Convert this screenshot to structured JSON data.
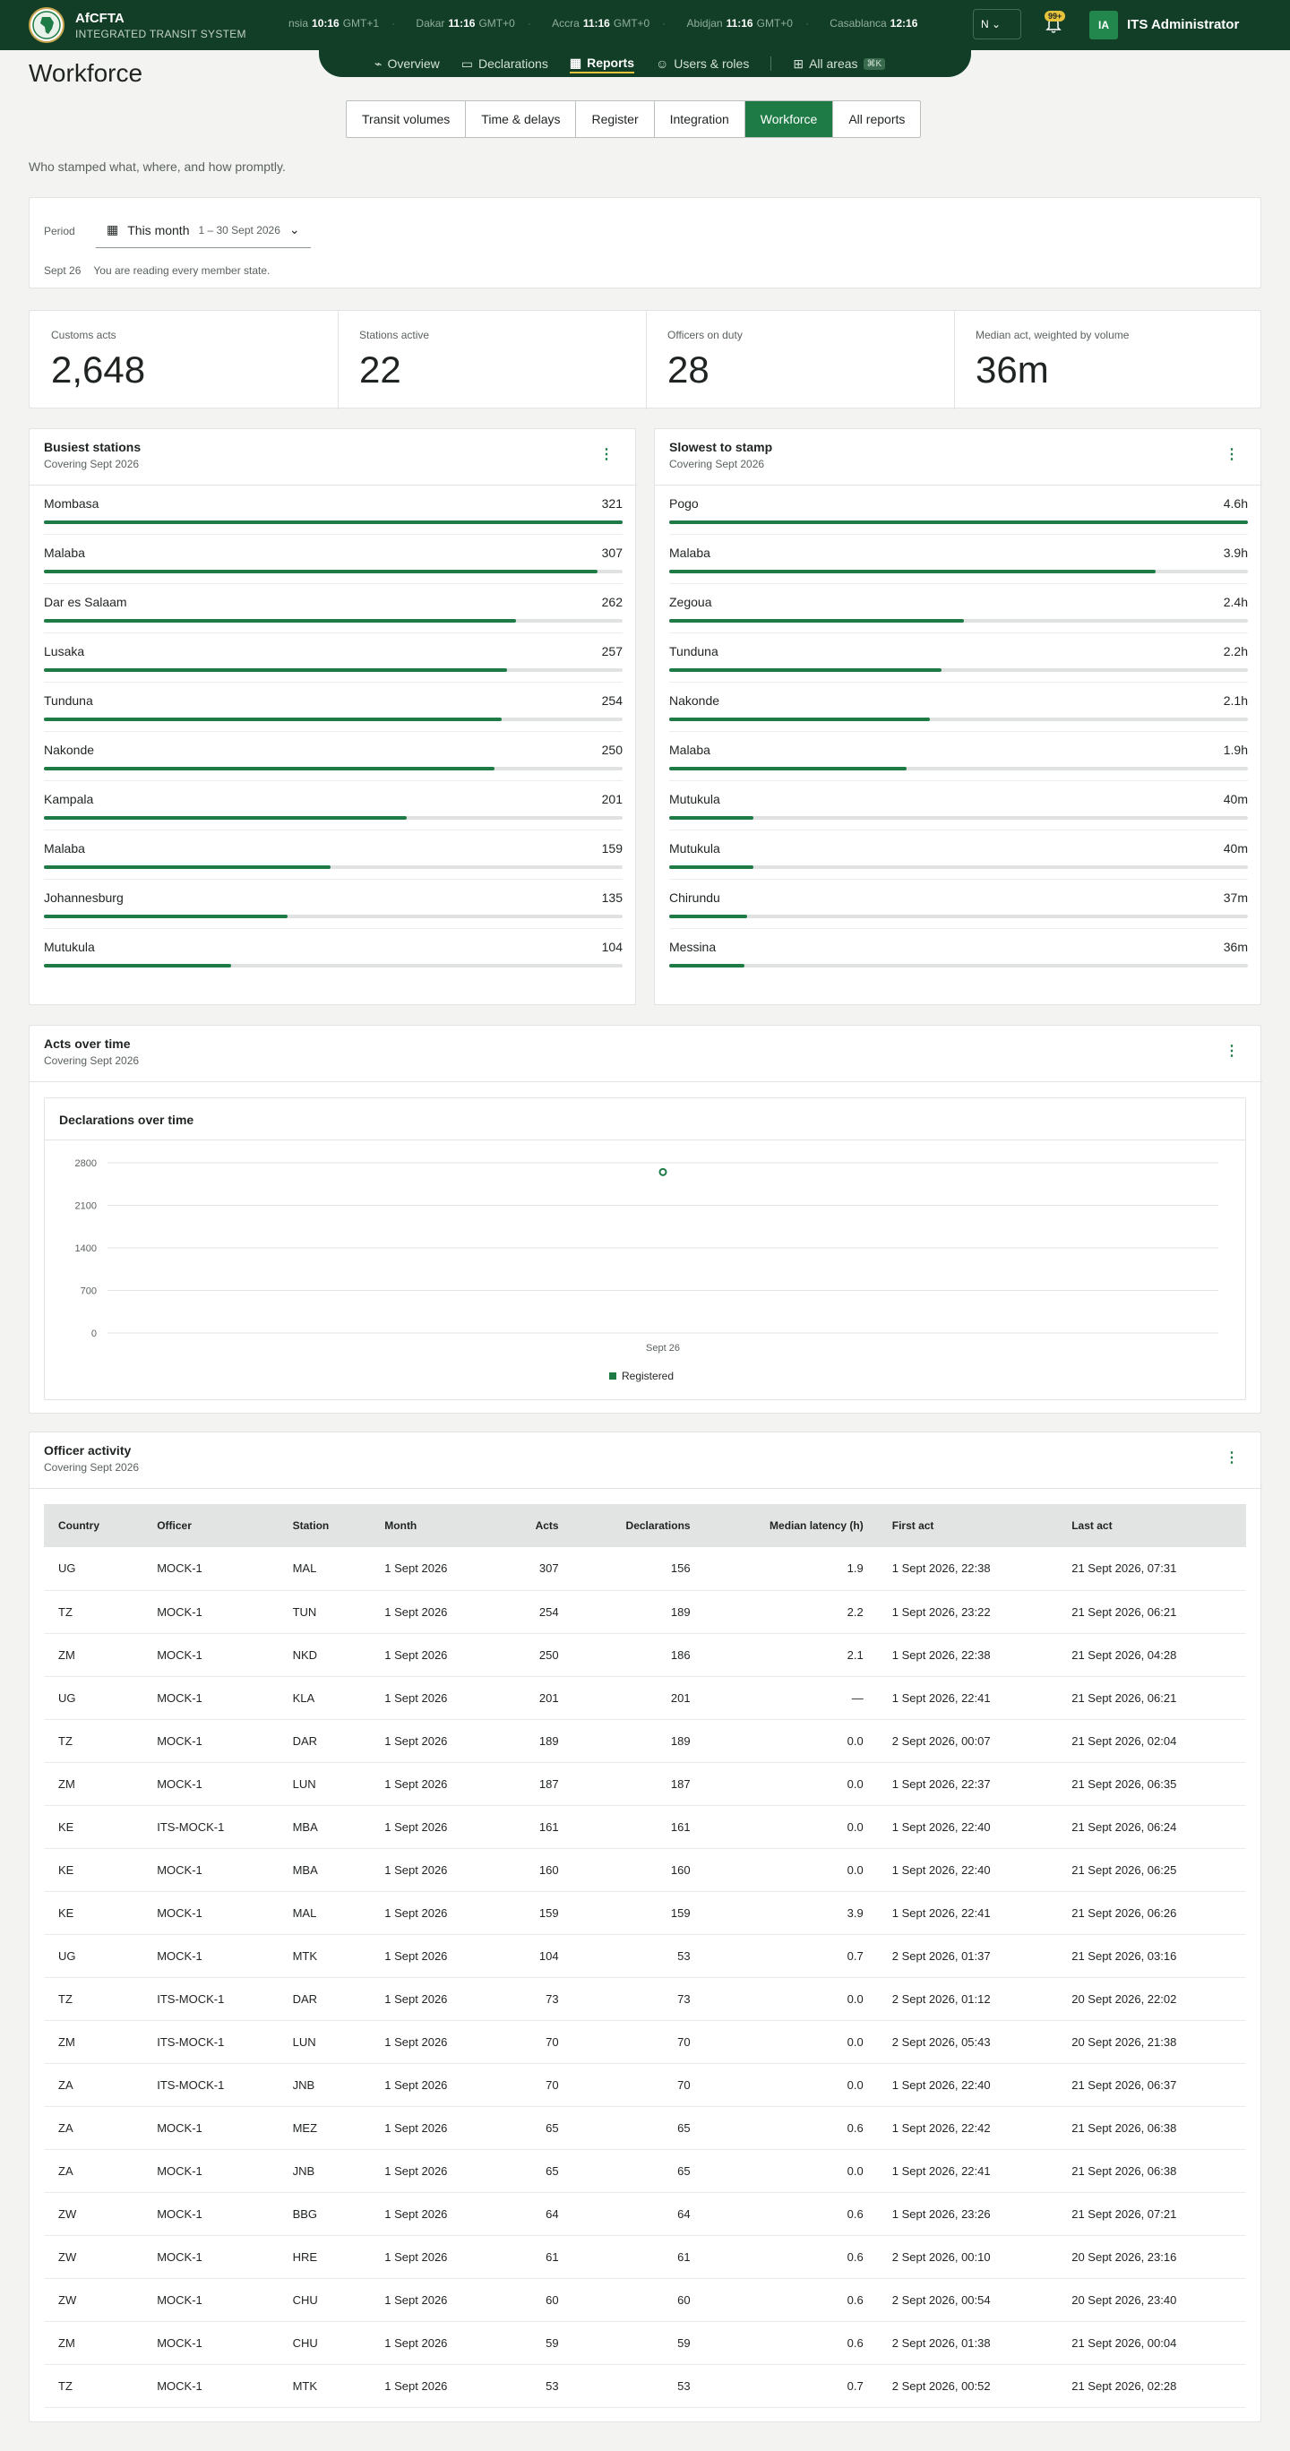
{
  "header": {
    "brand": "AfCFTA",
    "system": "INTEGRATED TRANSIT SYSTEM",
    "clocks": [
      {
        "city": "nsia",
        "time": "10:16",
        "zone": "GMT+1"
      },
      {
        "city": "Dakar",
        "time": "11:16",
        "zone": "GMT+0"
      },
      {
        "city": "Accra",
        "time": "11:16",
        "zone": "GMT+0"
      },
      {
        "city": "Abidjan",
        "time": "11:16",
        "zone": "GMT+0"
      },
      {
        "city": "Casablanca",
        "time": "12:16",
        "zone": ""
      }
    ],
    "lang_value": "N",
    "notif_badge": "99+",
    "user_initials": "IA",
    "user_name": "ITS Administrator"
  },
  "nav": {
    "overview": "Overview",
    "declarations": "Declarations",
    "reports": "Reports",
    "users": "Users & roles",
    "all_areas": "All areas",
    "shortcut": "⌘K"
  },
  "page": {
    "title": "Workforce",
    "subtitle": "Who stamped what, where, and how promptly."
  },
  "tabs": [
    "Transit volumes",
    "Time & delays",
    "Register",
    "Integration",
    "Workforce",
    "All reports"
  ],
  "period": {
    "label": "Period",
    "value": "This month",
    "range": "1 – 30 Sept 2026",
    "note_date": "Sept 26",
    "note_text": "You are reading every member state."
  },
  "kpis": [
    {
      "label": "Customs acts",
      "value": "2,648"
    },
    {
      "label": "Stations active",
      "value": "22"
    },
    {
      "label": "Officers on duty",
      "value": "28"
    },
    {
      "label": "Median act, weighted by volume",
      "value": "36m"
    }
  ],
  "busiest": {
    "title": "Busiest stations",
    "sub": "Covering Sept 2026",
    "max": 321,
    "rows": [
      {
        "name": "Mombasa",
        "value": 321
      },
      {
        "name": "Malaba",
        "value": 307
      },
      {
        "name": "Dar es Salaam",
        "value": 262
      },
      {
        "name": "Lusaka",
        "value": 257
      },
      {
        "name": "Tunduna",
        "value": 254
      },
      {
        "name": "Nakonde",
        "value": 250
      },
      {
        "name": "Kampala",
        "value": 201
      },
      {
        "name": "Malaba",
        "value": 159
      },
      {
        "name": "Johannesburg",
        "value": 135
      },
      {
        "name": "Mutukula",
        "value": 104
      }
    ]
  },
  "slowest": {
    "title": "Slowest to stamp",
    "sub": "Covering Sept 2026",
    "rows": [
      {
        "name": "Pogo",
        "label": "4.6h",
        "fraction": 1.0
      },
      {
        "name": "Malaba",
        "label": "3.9h",
        "fraction": 0.84
      },
      {
        "name": "Zegoua",
        "label": "2.4h",
        "fraction": 0.51
      },
      {
        "name": "Tunduna",
        "label": "2.2h",
        "fraction": 0.47
      },
      {
        "name": "Nakonde",
        "label": "2.1h",
        "fraction": 0.45
      },
      {
        "name": "Malaba",
        "label": "1.9h",
        "fraction": 0.41
      },
      {
        "name": "Mutukula",
        "label": "40m",
        "fraction": 0.145
      },
      {
        "name": "Mutukula",
        "label": "40m",
        "fraction": 0.145
      },
      {
        "name": "Chirundu",
        "label": "37m",
        "fraction": 0.134
      },
      {
        "name": "Messina",
        "label": "36m",
        "fraction": 0.13
      }
    ]
  },
  "acts": {
    "title": "Acts over time",
    "sub": "Covering Sept 2026"
  },
  "chart_data": {
    "type": "scatter",
    "title": "Declarations over time",
    "x": [
      "Sept 26"
    ],
    "series": [
      {
        "name": "Registered",
        "values": [
          2648
        ]
      }
    ],
    "yticks": [
      0,
      700,
      1400,
      2100,
      2800
    ],
    "ylim": [
      0,
      2800
    ],
    "grid": true,
    "legend": "bottom",
    "color": "#1e7b45"
  },
  "officers": {
    "title": "Officer activity",
    "sub": "Covering Sept 2026",
    "columns": [
      "Country",
      "Officer",
      "Station",
      "Month",
      "Acts",
      "Declarations",
      "Median latency (h)",
      "First act",
      "Last act"
    ],
    "rows": [
      [
        "UG",
        "MOCK-1",
        "MAL",
        "1 Sept 2026",
        "307",
        "156",
        "1.9",
        "1 Sept 2026, 22:38",
        "21 Sept 2026, 07:31"
      ],
      [
        "TZ",
        "MOCK-1",
        "TUN",
        "1 Sept 2026",
        "254",
        "189",
        "2.2",
        "1 Sept 2026, 23:22",
        "21 Sept 2026, 06:21"
      ],
      [
        "ZM",
        "MOCK-1",
        "NKD",
        "1 Sept 2026",
        "250",
        "186",
        "2.1",
        "1 Sept 2026, 22:38",
        "21 Sept 2026, 04:28"
      ],
      [
        "UG",
        "MOCK-1",
        "KLA",
        "1 Sept 2026",
        "201",
        "201",
        "—",
        "1 Sept 2026, 22:41",
        "21 Sept 2026, 06:21"
      ],
      [
        "TZ",
        "MOCK-1",
        "DAR",
        "1 Sept 2026",
        "189",
        "189",
        "0.0",
        "2 Sept 2026, 00:07",
        "21 Sept 2026, 02:04"
      ],
      [
        "ZM",
        "MOCK-1",
        "LUN",
        "1 Sept 2026",
        "187",
        "187",
        "0.0",
        "1 Sept 2026, 22:37",
        "21 Sept 2026, 06:35"
      ],
      [
        "KE",
        "ITS-MOCK-1",
        "MBA",
        "1 Sept 2026",
        "161",
        "161",
        "0.0",
        "1 Sept 2026, 22:40",
        "21 Sept 2026, 06:24"
      ],
      [
        "KE",
        "MOCK-1",
        "MBA",
        "1 Sept 2026",
        "160",
        "160",
        "0.0",
        "1 Sept 2026, 22:40",
        "21 Sept 2026, 06:25"
      ],
      [
        "KE",
        "MOCK-1",
        "MAL",
        "1 Sept 2026",
        "159",
        "159",
        "3.9",
        "1 Sept 2026, 22:41",
        "21 Sept 2026, 06:26"
      ],
      [
        "UG",
        "MOCK-1",
        "MTK",
        "1 Sept 2026",
        "104",
        "53",
        "0.7",
        "2 Sept 2026, 01:37",
        "21 Sept 2026, 03:16"
      ],
      [
        "TZ",
        "ITS-MOCK-1",
        "DAR",
        "1 Sept 2026",
        "73",
        "73",
        "0.0",
        "2 Sept 2026, 01:12",
        "20 Sept 2026, 22:02"
      ],
      [
        "ZM",
        "ITS-MOCK-1",
        "LUN",
        "1 Sept 2026",
        "70",
        "70",
        "0.0",
        "2 Sept 2026, 05:43",
        "20 Sept 2026, 21:38"
      ],
      [
        "ZA",
        "ITS-MOCK-1",
        "JNB",
        "1 Sept 2026",
        "70",
        "70",
        "0.0",
        "1 Sept 2026, 22:40",
        "21 Sept 2026, 06:37"
      ],
      [
        "ZA",
        "MOCK-1",
        "MEZ",
        "1 Sept 2026",
        "65",
        "65",
        "0.6",
        "1 Sept 2026, 22:42",
        "21 Sept 2026, 06:38"
      ],
      [
        "ZA",
        "MOCK-1",
        "JNB",
        "1 Sept 2026",
        "65",
        "65",
        "0.0",
        "1 Sept 2026, 22:41",
        "21 Sept 2026, 06:38"
      ],
      [
        "ZW",
        "MOCK-1",
        "BBG",
        "1 Sept 2026",
        "64",
        "64",
        "0.6",
        "1 Sept 2026, 23:26",
        "21 Sept 2026, 07:21"
      ],
      [
        "ZW",
        "MOCK-1",
        "HRE",
        "1 Sept 2026",
        "61",
        "61",
        "0.6",
        "2 Sept 2026, 00:10",
        "20 Sept 2026, 23:16"
      ],
      [
        "ZW",
        "MOCK-1",
        "CHU",
        "1 Sept 2026",
        "60",
        "60",
        "0.6",
        "2 Sept 2026, 00:54",
        "20 Sept 2026, 23:40"
      ],
      [
        "ZM",
        "MOCK-1",
        "CHU",
        "1 Sept 2026",
        "59",
        "59",
        "0.6",
        "2 Sept 2026, 01:38",
        "21 Sept 2026, 00:04"
      ],
      [
        "TZ",
        "MOCK-1",
        "MTK",
        "1 Sept 2026",
        "53",
        "53",
        "0.7",
        "2 Sept 2026, 00:52",
        "21 Sept 2026, 02:28"
      ]
    ]
  }
}
